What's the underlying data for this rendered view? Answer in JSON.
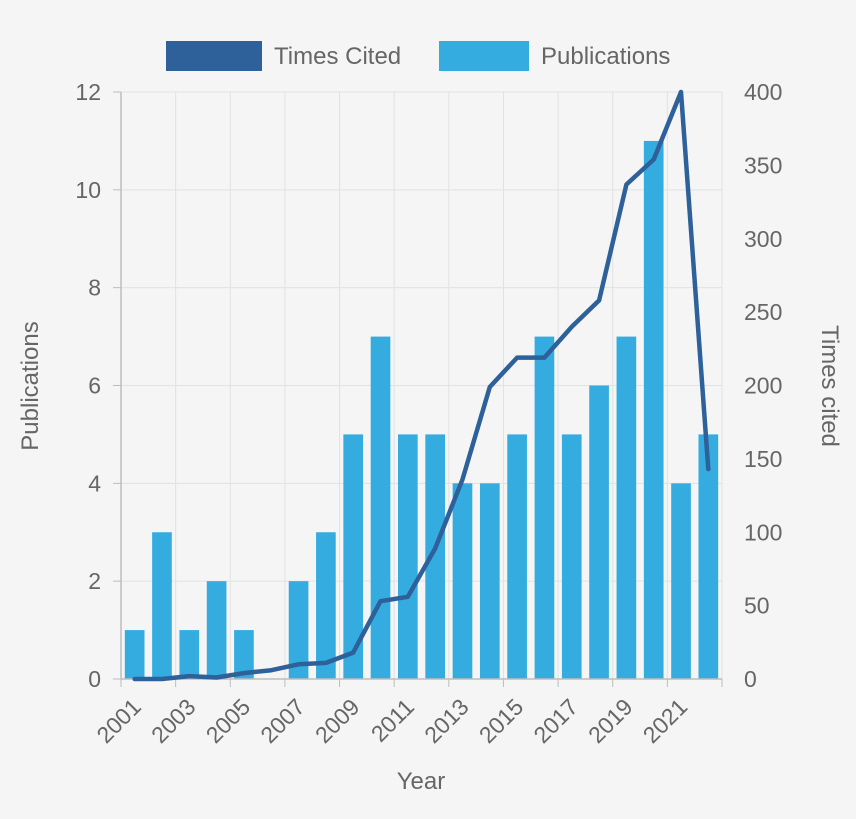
{
  "chart_data": {
    "type": "bar",
    "title": "",
    "x": [
      "2001",
      "2002",
      "2003",
      "2004",
      "2005",
      "2006",
      "2007",
      "2008",
      "2009",
      "2010",
      "2011",
      "2012",
      "2013",
      "2014",
      "2015",
      "2016",
      "2017",
      "2018",
      "2019",
      "2020",
      "2021",
      "2022"
    ],
    "x_tick_labels": [
      "2001",
      "2003",
      "2005",
      "2007",
      "2009",
      "2011",
      "2013",
      "2015",
      "2017",
      "2019",
      "2021"
    ],
    "xlabel": "Year",
    "ylabel": "Publications",
    "ylabel_right": "Times cited",
    "ylim": [
      0,
      12
    ],
    "ylim_right": [
      0,
      400
    ],
    "y_ticks": [
      0,
      2,
      4,
      6,
      8,
      10,
      12
    ],
    "y_ticks_right": [
      0,
      50,
      100,
      150,
      200,
      250,
      300,
      350,
      400
    ],
    "grid": true,
    "legend_position": "top",
    "series": [
      {
        "name": "Times Cited",
        "type": "line",
        "axis": "right",
        "color": "#2e6099",
        "values": [
          0,
          0,
          2,
          1,
          4,
          6,
          10,
          11,
          18,
          53,
          56,
          89,
          136,
          199,
          219,
          219,
          240,
          258,
          337,
          354,
          400,
          143
        ]
      },
      {
        "name": "Publications",
        "type": "bar",
        "axis": "left",
        "color": "#34ace0",
        "values": [
          1,
          3,
          1,
          2,
          1,
          0,
          2,
          3,
          5,
          7,
          5,
          5,
          4,
          4,
          5,
          7,
          5,
          6,
          7,
          11,
          4,
          5
        ]
      }
    ]
  }
}
